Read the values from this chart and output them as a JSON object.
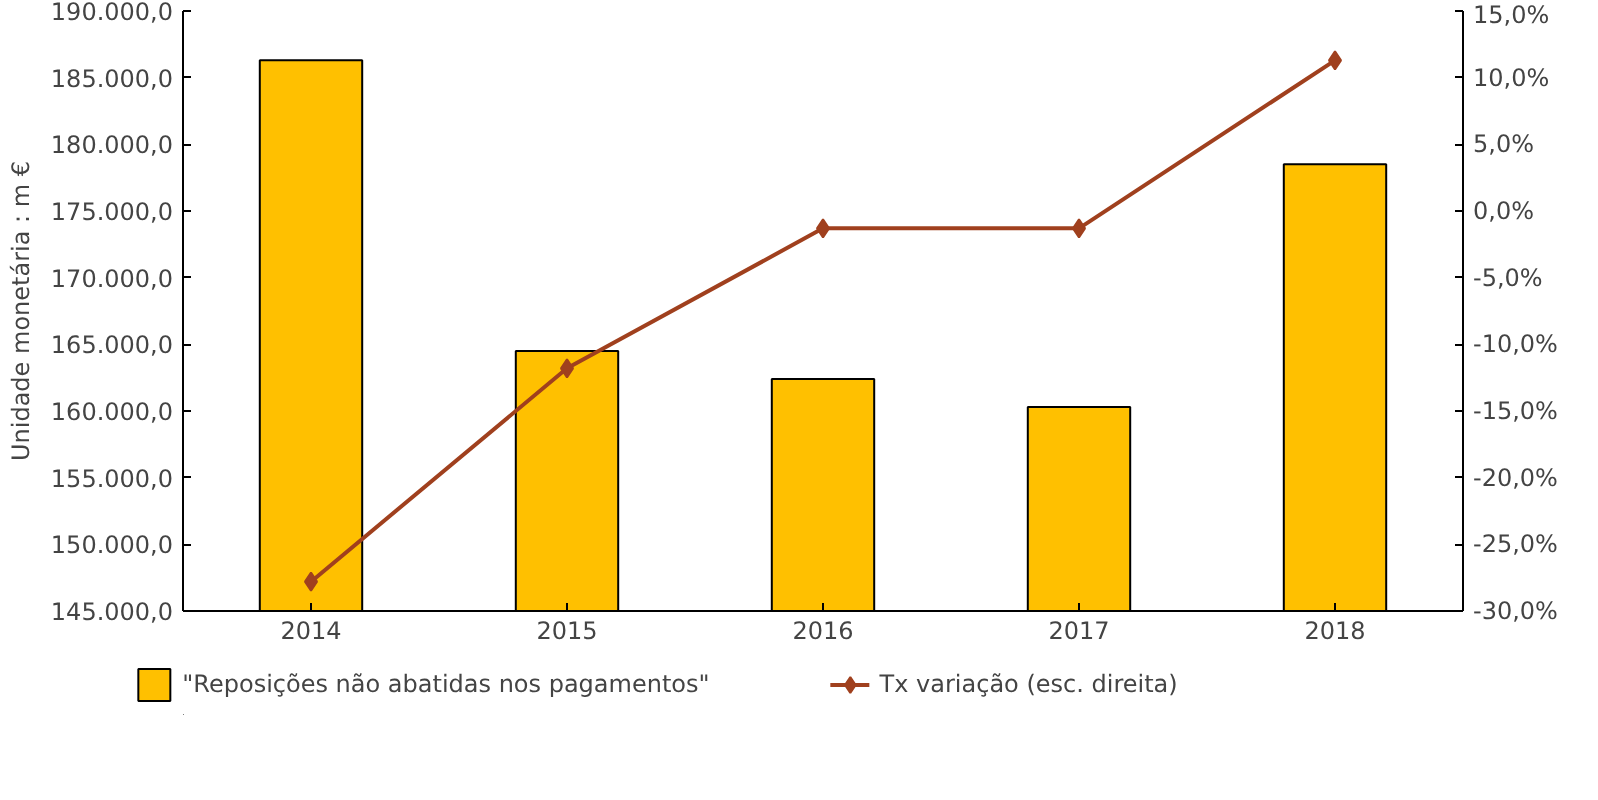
{
  "chart_data": {
    "type": "bar",
    "ylabel": "Unidade monetária : m €",
    "categories": [
      "2014",
      "2015",
      "2016",
      "2017",
      "2018"
    ],
    "series": [
      {
        "name": "\"Reposições não abatidas nos pagamentos\"",
        "color": "#ffc000",
        "values": [
          186300,
          164500,
          162400,
          160300,
          178500
        ]
      },
      {
        "name": "Tx variação (esc. direita)",
        "type": "line",
        "axis": "y2",
        "color": "#a0401e",
        "values": [
          -27.8,
          -11.8,
          -1.3,
          -1.3,
          11.3
        ]
      }
    ],
    "ylim": [
      145000,
      190000
    ],
    "yticks": [
      {
        "value": 145000,
        "label": "145.000,0"
      },
      {
        "value": 150000,
        "label": "150.000,0"
      },
      {
        "value": 155000,
        "label": "155.000,0"
      },
      {
        "value": 160000,
        "label": "160.000,0"
      },
      {
        "value": 165000,
        "label": "165.000,0"
      },
      {
        "value": 170000,
        "label": "170.000,0"
      },
      {
        "value": 175000,
        "label": "175.000,0"
      },
      {
        "value": 180000,
        "label": "180.000,0"
      },
      {
        "value": 185000,
        "label": "185.000,0"
      },
      {
        "value": 190000,
        "label": "190.000,0"
      }
    ],
    "y2lim": [
      -30,
      15
    ],
    "y2ticks": [
      {
        "value": -30,
        "label": "-30,0%"
      },
      {
        "value": -25,
        "label": "-25,0%"
      },
      {
        "value": -20,
        "label": "-20,0%"
      },
      {
        "value": -15,
        "label": "-15,0%"
      },
      {
        "value": -10,
        "label": "-10,0%"
      },
      {
        "value": -5,
        "label": "-5,0%"
      },
      {
        "value": 0,
        "label": "0,0%"
      },
      {
        "value": 5,
        "label": "5,0%"
      },
      {
        "value": 10,
        "label": "10,0%"
      },
      {
        "value": 15,
        "label": "15,0%"
      }
    ],
    "marker": "diamond",
    "legend": "bottom",
    "grid": false
  }
}
